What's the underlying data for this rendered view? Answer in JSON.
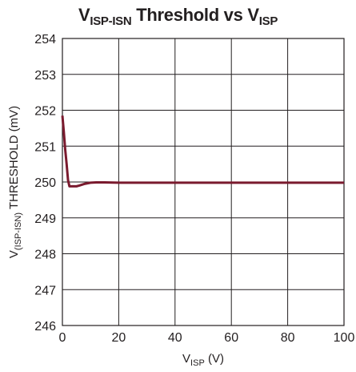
{
  "chart_data": {
    "type": "line",
    "title": {
      "main": "V",
      "main_sub": "ISP-ISN",
      "mid": " Threshold vs V",
      "end_sub": "ISP"
    },
    "xlabel": {
      "main": "V",
      "sub": "ISP",
      "unit": " (V)"
    },
    "ylabel": {
      "main": "V",
      "sub": "(ISP-ISN)",
      "rest": " THRESHOLD (mV)"
    },
    "xlim": [
      0,
      100
    ],
    "ylim": [
      246,
      254
    ],
    "x_ticks": [
      0,
      20,
      40,
      60,
      80,
      100
    ],
    "y_ticks": [
      246,
      247,
      248,
      249,
      250,
      251,
      252,
      253,
      254
    ],
    "grid": true,
    "series": [
      {
        "color": "#7a1a2e",
        "x": [
          0,
          0.5,
          1,
          1.5,
          2,
          2.5,
          3,
          4,
          5,
          6,
          8,
          10,
          12,
          15,
          20,
          30,
          40,
          60,
          80,
          100
        ],
        "y": [
          251.85,
          251.4,
          250.9,
          250.5,
          250.05,
          249.88,
          249.88,
          249.88,
          249.88,
          249.9,
          249.95,
          249.98,
          249.99,
          249.99,
          249.98,
          249.98,
          249.98,
          249.98,
          249.98,
          249.98
        ]
      }
    ]
  }
}
